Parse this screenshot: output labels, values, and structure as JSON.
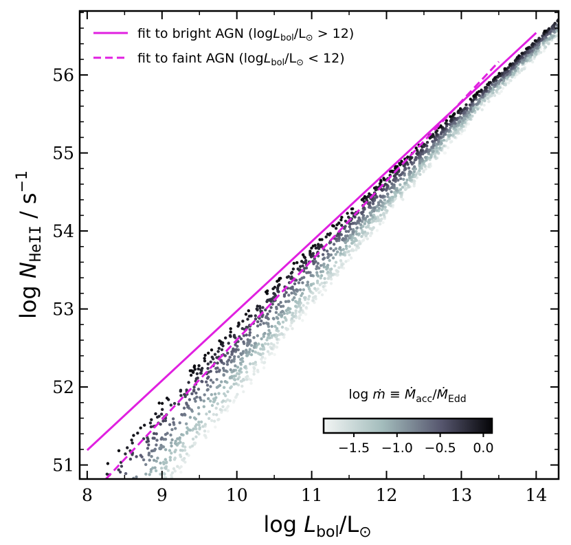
{
  "chart_data": {
    "type": "scatter",
    "xlim": [
      7.9,
      14.3
    ],
    "ylim": [
      50.82,
      56.82
    ],
    "x_ticks": [
      "8",
      "9",
      "10",
      "11",
      "12",
      "13",
      "14"
    ],
    "y_ticks": [
      "51",
      "52",
      "53",
      "54",
      "55",
      "56"
    ],
    "xlabel": {
      "prefix": "log ",
      "main": "L",
      "sub": "bol",
      "suffix": "/L",
      "sun": "⊙"
    },
    "ylabel": {
      "prefix": "log ",
      "main": "N",
      "sub": "HeII",
      "suffix": " / s",
      "sup": "−1"
    },
    "legend": {
      "placement": "top-left",
      "entries": [
        {
          "style": "solid",
          "color": "#e020e0",
          "text": "fit to bright AGN (log",
          "L": "L",
          "sub": "bol",
          "rest": "/L",
          "sun": "⊙",
          "cond": " > 12)"
        },
        {
          "style": "dashed",
          "color": "#e020e0",
          "text": "fit to faint AGN (log",
          "L": "L",
          "sub": "bol",
          "rest": "/L",
          "sun": "⊙",
          "cond": " < 12)"
        }
      ]
    },
    "fits": [
      {
        "name": "fit to bright AGN",
        "x": [
          8.0,
          14.0
        ],
        "y": [
          51.19,
          56.54
        ]
      },
      {
        "name": "fit to faint AGN",
        "x": [
          8.25,
          13.5
        ],
        "y": [
          50.82,
          56.17
        ]
      }
    ],
    "colorbar": {
      "label_prefix": "log ",
      "label_m": "ṁ",
      "label_equiv": " ≡ ",
      "label_num": "Ṁ",
      "label_num_sub": "acc",
      "label_slash": "/",
      "label_den": "Ṁ",
      "label_den_sub": "Edd",
      "range": [
        -1.85,
        0.1
      ],
      "ticks": [
        "−1.5",
        "−1.0",
        "−0.5",
        "0.0"
      ],
      "tick_values": [
        -1.5,
        -1.0,
        -0.5,
        0.0
      ],
      "colors": [
        "#f2f5f4",
        "#a3bcbc",
        "#56566e",
        "#050508"
      ]
    },
    "scatter": {
      "x_range": [
        8.15,
        14.3
      ],
      "mdot_range": [
        -1.85,
        0.1
      ],
      "n_points": 2500
    }
  }
}
